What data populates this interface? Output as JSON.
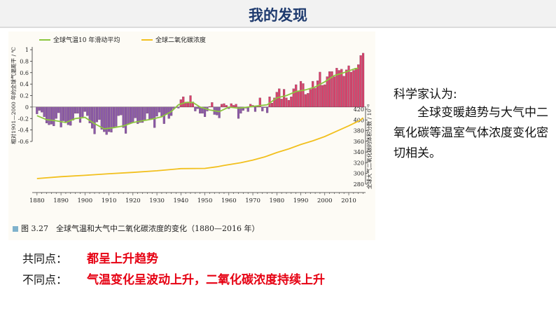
{
  "page": {
    "title": "我的发现",
    "caption": "图 3.27　全球气温和大气中二氧化碳浓度的变化（1880—2016 年）",
    "side_heading": "科学家认为:",
    "side_text": "全球变暖趋势与大气中二氧化碳等温室气体浓度变化密切相关。",
    "common_label": "共同点：",
    "common_text": "都呈上升趋势",
    "diff_label": "不同点：",
    "diff_text": "气温变化呈波动上升，二氧化碳浓度持续上升"
  },
  "colors": {
    "title": "#1e3a6e",
    "bar_pos": "#d8436b",
    "bar_neg": "#8a5aa8",
    "moving_avg": "#8cc63f",
    "co2": "#f2c01e",
    "highlight": "#e60012"
  },
  "chart_data": {
    "type": "bar+line",
    "legend": [
      "全球气温10 年滑动平均",
      "全球二氧化碳浓度"
    ],
    "legend_placement": "top-left",
    "x": {
      "range": [
        1878,
        2017
      ],
      "ticks": [
        1880,
        1890,
        1900,
        1910,
        1920,
        1930,
        1940,
        1950,
        1960,
        1970,
        1980,
        1990,
        2000,
        2010
      ]
    },
    "y_left": {
      "label": "相对1901—2000 年的全球气温距平 / ℃",
      "range": [
        -0.6,
        1.0
      ],
      "ticks": [
        "1",
        "0.8",
        "0.6",
        "0.4",
        "0.2",
        "0",
        "-0.2",
        "-0.4",
        "-0.6"
      ]
    },
    "y_right": {
      "label": "全球大气二氧化碳的体积分数 / 10⁻⁶",
      "range": [
        280,
        420
      ],
      "ticks": [
        280,
        300,
        320,
        340,
        360,
        380,
        400,
        420
      ]
    },
    "series": [
      {
        "name": "全球气温距平",
        "type": "bar",
        "start_year": 1880,
        "values": [
          -0.12,
          -0.06,
          -0.09,
          -0.17,
          -0.28,
          -0.31,
          -0.3,
          -0.33,
          -0.2,
          -0.1,
          -0.35,
          -0.24,
          -0.27,
          -0.31,
          -0.32,
          -0.23,
          -0.11,
          -0.11,
          -0.27,
          -0.17,
          -0.08,
          -0.15,
          -0.28,
          -0.37,
          -0.47,
          -0.26,
          -0.22,
          -0.39,
          -0.43,
          -0.48,
          -0.43,
          -0.44,
          -0.36,
          -0.34,
          -0.15,
          -0.14,
          -0.36,
          -0.46,
          -0.3,
          -0.28,
          -0.27,
          -0.19,
          -0.29,
          -0.27,
          -0.27,
          -0.22,
          -0.11,
          -0.22,
          -0.2,
          -0.36,
          -0.16,
          -0.09,
          -0.16,
          -0.29,
          -0.12,
          -0.2,
          -0.15,
          -0.03,
          -0.01,
          -0.02,
          0.13,
          0.18,
          0.07,
          0.09,
          0.2,
          0.09,
          -0.07,
          -0.03,
          -0.11,
          -0.11,
          -0.17,
          -0.07,
          0.01,
          0.08,
          -0.13,
          -0.14,
          -0.19,
          0.05,
          0.06,
          0.03,
          -0.03,
          0.06,
          0.03,
          0.05,
          -0.2,
          -0.11,
          -0.06,
          -0.02,
          -0.08,
          0.05,
          0.03,
          -0.08,
          0.01,
          0.16,
          -0.07,
          -0.01,
          -0.1,
          0.18,
          0.07,
          0.16,
          0.26,
          0.32,
          0.14,
          0.31,
          0.16,
          0.12,
          0.18,
          0.32,
          0.39,
          0.27,
          0.45,
          0.41,
          0.22,
          0.24,
          0.31,
          0.45,
          0.33,
          0.46,
          0.61,
          0.38,
          0.39,
          0.53,
          0.62,
          0.62,
          0.53,
          0.68,
          0.64,
          0.66,
          0.54,
          0.65,
          0.72,
          0.61,
          0.64,
          0.68,
          0.74,
          0.9,
          0.94
        ]
      },
      {
        "name": "全球气温10 年滑动平均",
        "type": "line",
        "points": [
          [
            1880,
            -0.15
          ],
          [
            1884,
            -0.22
          ],
          [
            1888,
            -0.24
          ],
          [
            1892,
            -0.27
          ],
          [
            1896,
            -0.2
          ],
          [
            1900,
            -0.18
          ],
          [
            1904,
            -0.29
          ],
          [
            1908,
            -0.38
          ],
          [
            1912,
            -0.36
          ],
          [
            1916,
            -0.33
          ],
          [
            1920,
            -0.27
          ],
          [
            1924,
            -0.24
          ],
          [
            1928,
            -0.21
          ],
          [
            1932,
            -0.17
          ],
          [
            1936,
            -0.08
          ],
          [
            1939,
            0.04
          ],
          [
            1942,
            0.08
          ],
          [
            1945,
            0.08
          ],
          [
            1948,
            0.0
          ],
          [
            1952,
            -0.05
          ],
          [
            1956,
            -0.08
          ],
          [
            1960,
            0.0
          ],
          [
            1964,
            -0.02
          ],
          [
            1968,
            0.0
          ],
          [
            1972,
            0.02
          ],
          [
            1976,
            0.04
          ],
          [
            1980,
            0.16
          ],
          [
            1984,
            0.2
          ],
          [
            1988,
            0.27
          ],
          [
            1992,
            0.3
          ],
          [
            1996,
            0.35
          ],
          [
            2000,
            0.44
          ],
          [
            2004,
            0.55
          ],
          [
            2008,
            0.6
          ],
          [
            2012,
            0.66
          ],
          [
            2014,
            0.68
          ]
        ]
      },
      {
        "name": "全球二氧化碳浓度",
        "type": "line",
        "points": [
          [
            1880,
            290.5
          ],
          [
            1890,
            294
          ],
          [
            1900,
            296.5
          ],
          [
            1910,
            299.5
          ],
          [
            1920,
            302
          ],
          [
            1930,
            305
          ],
          [
            1940,
            309
          ],
          [
            1950,
            309.5
          ],
          [
            1955,
            312.5
          ],
          [
            1958,
            315
          ],
          [
            1965,
            320
          ],
          [
            1970,
            325
          ],
          [
            1975,
            331
          ],
          [
            1980,
            339
          ],
          [
            1985,
            346
          ],
          [
            1990,
            354
          ],
          [
            1995,
            361
          ],
          [
            2000,
            369
          ],
          [
            2005,
            379
          ],
          [
            2010,
            389
          ],
          [
            2015,
            400
          ],
          [
            2016,
            404
          ]
        ]
      }
    ]
  }
}
